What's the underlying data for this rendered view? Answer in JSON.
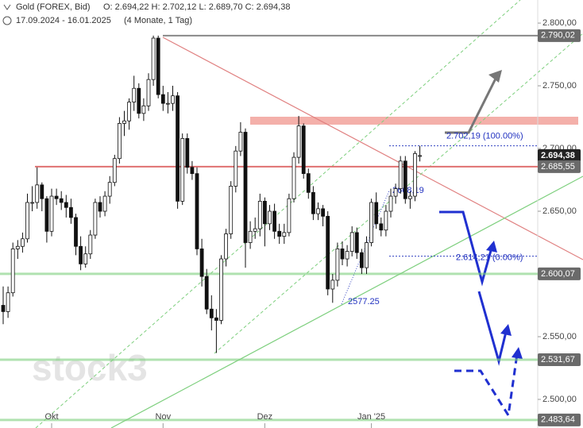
{
  "chart_data": {
    "type": "candlestick",
    "title": "Gold (FOREX, Bid)",
    "quote": "O: 2.694,22 H: 2.702,12 L: 2.689,70 C: 2.694,38",
    "date_range": "17.09.2024 - 16.01.2025",
    "period": "(4 Monate, 1 Tag)",
    "watermark": "stock3",
    "annotations": [
      "2668,19",
      "2577.25"
    ],
    "categories": [
      null,
      null,
      null,
      null,
      null,
      null,
      null,
      null,
      null,
      null,
      "Okt",
      null,
      null,
      null,
      null,
      null,
      null,
      null,
      null,
      null,
      null,
      null,
      null,
      null,
      null,
      null,
      null,
      null,
      null,
      null,
      null,
      null,
      null,
      "Nov",
      null,
      null,
      null,
      null,
      null,
      null,
      null,
      null,
      null,
      null,
      null,
      null,
      null,
      null,
      null,
      null,
      null,
      null,
      null,
      null,
      "Dez",
      null,
      null,
      null,
      null,
      null,
      null,
      null,
      null,
      null,
      null,
      null,
      null,
      null,
      null,
      null,
      null,
      null,
      null,
      null,
      null,
      null,
      "Jan '25",
      null,
      null,
      null,
      null,
      null,
      null,
      null,
      null,
      null,
      null
    ],
    "open": [
      2575,
      2570,
      2585,
      2620,
      2622,
      2628,
      2657,
      2657,
      2671,
      2660,
      2634,
      2662,
      2660,
      2657,
      2653,
      2645,
      2622,
      2608,
      2616,
      2631,
      2657,
      2650,
      2662,
      2673,
      2692,
      2720,
      2722,
      2737,
      2748,
      2728,
      2734,
      2755,
      2788,
      2743,
      2736,
      2736,
      2742,
      2658,
      2708,
      2685,
      2680,
      2620,
      2598,
      2572,
      2565,
      2563,
      2612,
      2632,
      2670,
      2698,
      2713,
      2625,
      2634,
      2636,
      2658,
      2640,
      2650,
      2634,
      2630,
      2633,
      2660,
      2693,
      2718,
      2680,
      2665,
      2648,
      2652,
      2646,
      2588,
      2595,
      2620,
      2612,
      2618,
      2633,
      2617,
      2605,
      2625,
      2657,
      2640,
      2635,
      2650,
      2662,
      2668,
      2690,
      2660,
      2662,
      2694.22
    ],
    "high": [
      2590,
      2590,
      2625,
      2627,
      2633,
      2664,
      2670,
      2685,
      2673,
      2662,
      2668,
      2668,
      2666,
      2663,
      2660,
      2648,
      2630,
      2622,
      2635,
      2660,
      2662,
      2666,
      2678,
      2695,
      2725,
      2730,
      2740,
      2758,
      2752,
      2740,
      2760,
      2790,
      2790,
      2750,
      2745,
      2750,
      2745,
      2712,
      2712,
      2690,
      2685,
      2628,
      2604,
      2583,
      2572,
      2615,
      2636,
      2674,
      2702,
      2721,
      2716,
      2642,
      2645,
      2664,
      2661,
      2655,
      2656,
      2640,
      2640,
      2664,
      2697,
      2726,
      2720,
      2684,
      2670,
      2657,
      2655,
      2650,
      2600,
      2625,
      2626,
      2623,
      2638,
      2637,
      2620,
      2630,
      2660,
      2665,
      2645,
      2655,
      2668,
      2672,
      2694,
      2694,
      2666,
      2698,
      2702.12
    ],
    "low": [
      2560,
      2565,
      2582,
      2612,
      2617,
      2625,
      2650,
      2652,
      2650,
      2625,
      2630,
      2655,
      2651,
      2645,
      2640,
      2615,
      2603,
      2605,
      2612,
      2628,
      2645,
      2646,
      2656,
      2670,
      2688,
      2710,
      2715,
      2730,
      2724,
      2722,
      2730,
      2750,
      2740,
      2730,
      2728,
      2730,
      2652,
      2655,
      2680,
      2675,
      2615,
      2590,
      2568,
      2555,
      2537,
      2560,
      2606,
      2628,
      2665,
      2694,
      2605,
      2620,
      2628,
      2630,
      2622,
      2635,
      2628,
      2624,
      2624,
      2630,
      2657,
      2688,
      2676,
      2660,
      2643,
      2643,
      2638,
      2583,
      2577,
      2590,
      2607,
      2606,
      2614,
      2612,
      2600,
      2600,
      2622,
      2636,
      2630,
      2630,
      2645,
      2656,
      2664,
      2656,
      2652,
      2658,
      2689.7
    ],
    "close": [
      2570,
      2585,
      2620,
      2622,
      2628,
      2657,
      2657,
      2671,
      2660,
      2634,
      2662,
      2660,
      2657,
      2653,
      2645,
      2622,
      2608,
      2616,
      2631,
      2657,
      2650,
      2662,
      2673,
      2692,
      2720,
      2722,
      2737,
      2748,
      2728,
      2734,
      2755,
      2788,
      2743,
      2736,
      2736,
      2742,
      2658,
      2708,
      2685,
      2680,
      2620,
      2598,
      2572,
      2565,
      2563,
      2612,
      2632,
      2670,
      2698,
      2713,
      2625,
      2634,
      2636,
      2658,
      2640,
      2650,
      2634,
      2630,
      2633,
      2660,
      2693,
      2718,
      2680,
      2665,
      2648,
      2652,
      2646,
      2588,
      2595,
      2620,
      2612,
      2618,
      2633,
      2617,
      2605,
      2625,
      2657,
      2640,
      2635,
      2650,
      2662,
      2668,
      2690,
      2660,
      2662,
      2696,
      2694.38
    ],
    "ylim": [
      2477.2,
      2818.4
    ],
    "yticks": [
      {
        "value": 2500,
        "label": "2.500,00"
      },
      {
        "value": 2550,
        "label": "2.550,00"
      },
      {
        "value": 2600,
        "label": "2.600,00"
      },
      {
        "value": 2650,
        "label": "2.650,00"
      },
      {
        "value": 2700,
        "label": "2.700,00"
      },
      {
        "value": 2750,
        "label": "2.750,00"
      },
      {
        "value": 2800,
        "label": "2.800,00"
      }
    ],
    "levels": [
      {
        "value": 2790.02,
        "label": "2.790,02",
        "color": "#888888"
      },
      {
        "value": 2694.38,
        "label": "2.694,38",
        "color": "#f06060"
      },
      {
        "value": 2685.55,
        "label": "2.685,55",
        "color": "#e07070"
      },
      {
        "value": 2600.07,
        "label": "2.600,07",
        "color": "#7dcf7d"
      },
      {
        "value": 2531.67,
        "label": "2.531,67",
        "color": "#7dcf7d"
      },
      {
        "value": 2483.64,
        "label": "2.483,64",
        "color": "#7dcf7d"
      }
    ],
    "fib": [
      {
        "value": 2702.19,
        "label": "2.702,19 (100.00%)"
      },
      {
        "value": 2614.21,
        "label": "2.614,21 (0.00%)"
      }
    ]
  }
}
